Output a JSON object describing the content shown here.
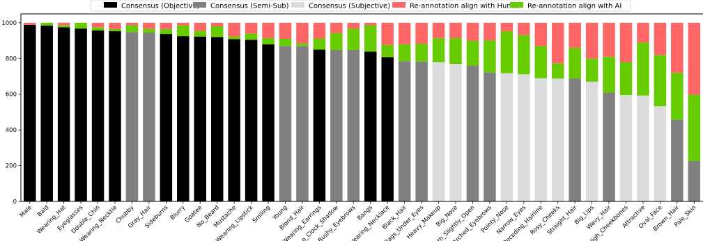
{
  "chart_data": {
    "type": "bar",
    "stacked": true,
    "ylim": [
      0,
      1050
    ],
    "yticks": [
      0,
      200,
      400,
      600,
      800,
      1000
    ],
    "legend_position": "top-center",
    "grid": false,
    "legend": [
      {
        "label": "Consensus (Objective)",
        "color": "#000000"
      },
      {
        "label": "Consensus (Semi-Sub)",
        "color": "#808080"
      },
      {
        "label": "Consensus (Subjective)",
        "color": "#dcdcdc"
      },
      {
        "label": "Re-annotation align with Human",
        "color": "#ff6666"
      },
      {
        "label": "Re-annotation align with AI",
        "color": "#66cc00"
      }
    ],
    "categories": [
      {
        "name": "Male",
        "consensus": 988,
        "ai": 0,
        "type": "objective"
      },
      {
        "name": "Bald",
        "consensus": 985,
        "ai": 15,
        "type": "objective"
      },
      {
        "name": "Wearing_Hat",
        "consensus": 975,
        "ai": 10,
        "type": "objective"
      },
      {
        "name": "Eyeglasses",
        "consensus": 968,
        "ai": 32,
        "type": "objective"
      },
      {
        "name": "Double_Chin",
        "consensus": 958,
        "ai": 17,
        "type": "objective"
      },
      {
        "name": "Wearing_Necktie",
        "consensus": 953,
        "ai": 12,
        "type": "objective"
      },
      {
        "name": "Chubby",
        "consensus": 948,
        "ai": 38,
        "type": "semi"
      },
      {
        "name": "Gray_Hair",
        "consensus": 945,
        "ai": 22,
        "type": "semi"
      },
      {
        "name": "Sideburns",
        "consensus": 937,
        "ai": 28,
        "type": "objective"
      },
      {
        "name": "Blurry",
        "consensus": 925,
        "ai": 60,
        "type": "objective"
      },
      {
        "name": "Goatee",
        "consensus": 923,
        "ai": 32,
        "type": "objective"
      },
      {
        "name": "No_Beard",
        "consensus": 920,
        "ai": 60,
        "type": "objective"
      },
      {
        "name": "Mustache",
        "consensus": 908,
        "ai": 15,
        "type": "objective"
      },
      {
        "name": "Wearing_Lipstick",
        "consensus": 905,
        "ai": 35,
        "type": "objective"
      },
      {
        "name": "Smiling",
        "consensus": 880,
        "ai": 35,
        "type": "objective"
      },
      {
        "name": "Young",
        "consensus": 870,
        "ai": 40,
        "type": "semi"
      },
      {
        "name": "Blond_Hair",
        "consensus": 870,
        "ai": 15,
        "type": "semi"
      },
      {
        "name": "Wearing_Earrings",
        "consensus": 850,
        "ai": 62,
        "type": "objective"
      },
      {
        "name": "5_o_Clock_Shadow",
        "consensus": 848,
        "ai": 95,
        "type": "semi"
      },
      {
        "name": "Bushy_Eyebrows",
        "consensus": 848,
        "ai": 120,
        "type": "semi"
      },
      {
        "name": "Bangs",
        "consensus": 838,
        "ai": 148,
        "type": "objective"
      },
      {
        "name": "Wearing_Necklace",
        "consensus": 808,
        "ai": 68,
        "type": "objective"
      },
      {
        "name": "Black_Hair",
        "consensus": 785,
        "ai": 95,
        "type": "semi"
      },
      {
        "name": "Bags_Under_Eyes",
        "consensus": 783,
        "ai": 100,
        "type": "semi"
      },
      {
        "name": "Heavy_Makeup",
        "consensus": 780,
        "ai": 135,
        "type": "subjective"
      },
      {
        "name": "Big_Nose",
        "consensus": 770,
        "ai": 145,
        "type": "subjective"
      },
      {
        "name": "Mouth_Slightly_Open",
        "consensus": 760,
        "ai": 140,
        "type": "semi"
      },
      {
        "name": "Arched_Eyebrows",
        "consensus": 722,
        "ai": 180,
        "type": "semi"
      },
      {
        "name": "Pointy_Nose",
        "consensus": 718,
        "ai": 235,
        "type": "subjective"
      },
      {
        "name": "Narrow_Eyes",
        "consensus": 712,
        "ai": 220,
        "type": "subjective"
      },
      {
        "name": "Receding_Hairline",
        "consensus": 690,
        "ai": 180,
        "type": "subjective"
      },
      {
        "name": "Rosy_Cheeks",
        "consensus": 688,
        "ai": 85,
        "type": "subjective"
      },
      {
        "name": "Straight_Hair",
        "consensus": 688,
        "ai": 172,
        "type": "semi"
      },
      {
        "name": "Big_Lips",
        "consensus": 670,
        "ai": 130,
        "type": "subjective"
      },
      {
        "name": "Wavy_Hair",
        "consensus": 610,
        "ai": 200,
        "type": "semi"
      },
      {
        "name": "High_Cheekbones",
        "consensus": 595,
        "ai": 185,
        "type": "subjective"
      },
      {
        "name": "Attractive",
        "consensus": 593,
        "ai": 297,
        "type": "subjective"
      },
      {
        "name": "Oval_Face",
        "consensus": 533,
        "ai": 287,
        "type": "subjective"
      },
      {
        "name": "Brown_Hair",
        "consensus": 458,
        "ai": 262,
        "type": "semi"
      },
      {
        "name": "Pale_Skin",
        "consensus": 227,
        "ai": 370,
        "type": "semi"
      }
    ]
  }
}
